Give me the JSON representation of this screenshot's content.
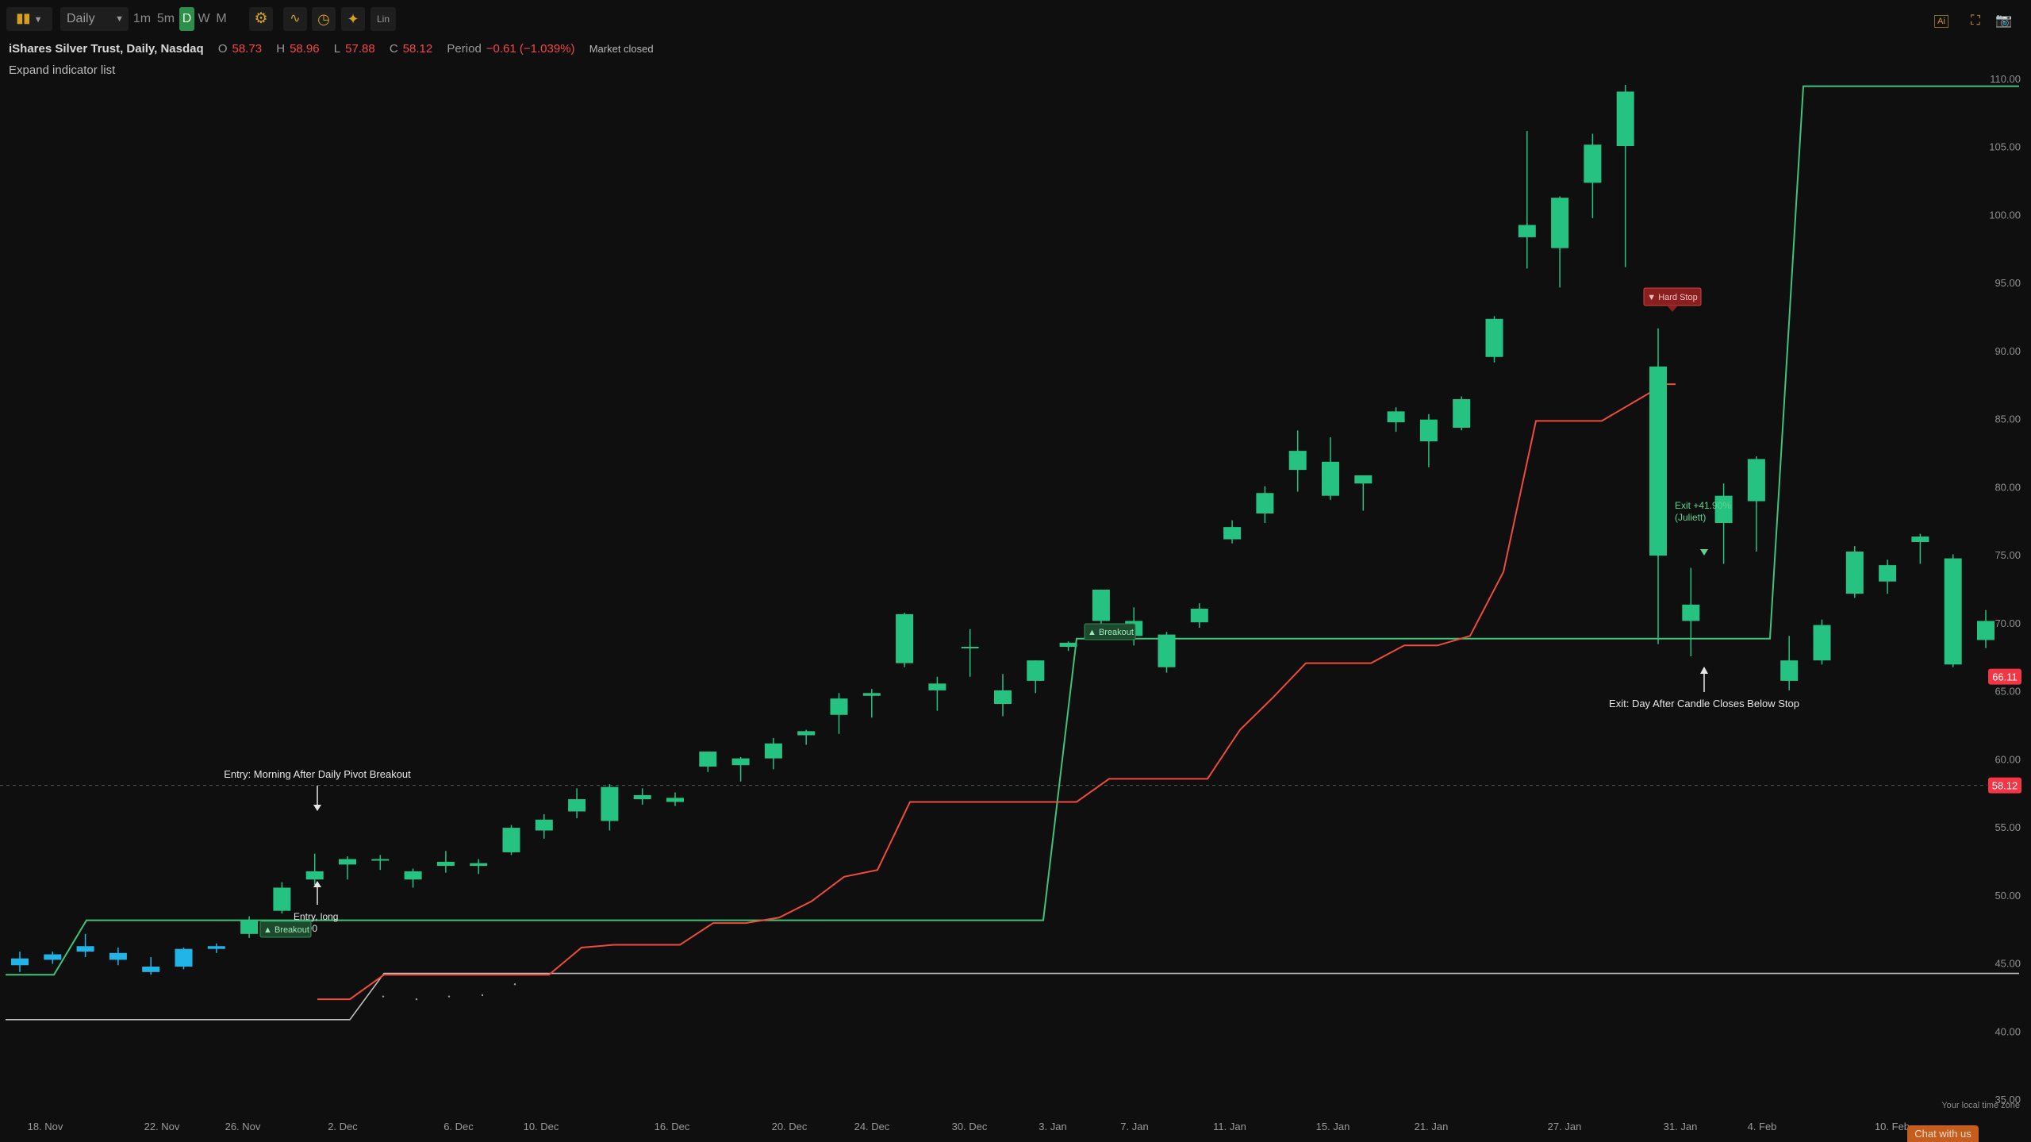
{
  "toolbar": {
    "timeframe": "Daily",
    "intervals": [
      "1m",
      "5m",
      "D",
      "W",
      "M"
    ],
    "active_interval": "D",
    "lin_label": "Lin"
  },
  "legend": {
    "symbol": "iShares Silver Trust, Daily, Nasdaq",
    "o_label": "O",
    "o": "58.73",
    "h_label": "H",
    "h": "58.96",
    "l_label": "L",
    "l": "57.88",
    "c_label": "C",
    "c": "58.12",
    "period_label": "Period",
    "period": "−0.61 (−1.039%)",
    "status": "Market closed"
  },
  "expand_label": "Expand indicator list",
  "timezone_note": "Your local time zone",
  "chat_label": "Chat with us",
  "colors": {
    "background": "#0f0f0f",
    "up": "#26c281",
    "early": "#22b4e6",
    "stop": "#f04b3a",
    "channel": "#3ec47a",
    "floor": "#bfbfbf",
    "price_badge": "#f23645"
  },
  "icons": [
    "candles-icon",
    "settings-icon",
    "indicators-icon",
    "clock-icon",
    "crosshair-icon",
    "ai-icon",
    "fullscreen-icon",
    "camera-icon"
  ],
  "chart_data": {
    "type": "candlestick",
    "y_axis": {
      "min": 35,
      "max": 110,
      "ticks": [
        110,
        105,
        100,
        95,
        90,
        85,
        80,
        75,
        70,
        65,
        60,
        55,
        50,
        45,
        40,
        35
      ]
    },
    "x_ticks": [
      "18. Nov",
      "22. Nov",
      "26. Nov",
      "2. Dec",
      "6. Dec",
      "10. Dec",
      "16. Dec",
      "20. Dec",
      "24. Dec",
      "30. Dec",
      "3. Jan",
      "7. Jan",
      "11. Jan",
      "15. Jan",
      "21. Jan",
      "27. Jan",
      "31. Jan",
      "4. Feb",
      "10. Feb"
    ],
    "candles": [
      {
        "i": 0,
        "o": 44.9,
        "h": 45.9,
        "l": 44.4,
        "c": 45.4,
        "early": true
      },
      {
        "i": 1,
        "o": 45.3,
        "h": 45.9,
        "l": 45.0,
        "c": 45.7,
        "early": true
      },
      {
        "i": 2,
        "o": 45.9,
        "h": 47.2,
        "l": 45.5,
        "c": 46.3,
        "early": true
      },
      {
        "i": 3,
        "o": 45.3,
        "h": 46.2,
        "l": 44.9,
        "c": 45.8,
        "early": true
      },
      {
        "i": 4,
        "o": 44.4,
        "h": 45.5,
        "l": 44.2,
        "c": 44.8,
        "early": true
      },
      {
        "i": 5,
        "o": 44.8,
        "h": 46.2,
        "l": 44.6,
        "c": 46.1,
        "early": true
      },
      {
        "i": 6,
        "o": 46.1,
        "h": 46.5,
        "l": 45.8,
        "c": 46.3,
        "early": true
      },
      {
        "i": 7,
        "o": 47.2,
        "h": 48.5,
        "l": 46.9,
        "c": 48.2
      },
      {
        "i": 8,
        "o": 48.9,
        "h": 51.0,
        "l": 48.7,
        "c": 50.6
      },
      {
        "i": 9,
        "o": 51.2,
        "h": 53.1,
        "l": 50.8,
        "c": 51.8
      },
      {
        "i": 10,
        "o": 52.3,
        "h": 52.9,
        "l": 51.2,
        "c": 52.7
      },
      {
        "i": 11,
        "o": 52.6,
        "h": 53.0,
        "l": 51.9,
        "c": 52.7
      },
      {
        "i": 12,
        "o": 51.2,
        "h": 52.0,
        "l": 50.6,
        "c": 51.8
      },
      {
        "i": 13,
        "o": 52.2,
        "h": 53.3,
        "l": 51.7,
        "c": 52.5
      },
      {
        "i": 14,
        "o": 52.2,
        "h": 52.7,
        "l": 51.6,
        "c": 52.4
      },
      {
        "i": 15,
        "o": 53.2,
        "h": 55.2,
        "l": 53.0,
        "c": 55.0
      },
      {
        "i": 16,
        "o": 54.8,
        "h": 56.0,
        "l": 54.2,
        "c": 55.6
      },
      {
        "i": 17,
        "o": 56.2,
        "h": 57.9,
        "l": 55.7,
        "c": 57.1
      },
      {
        "i": 18,
        "o": 55.5,
        "h": 58.2,
        "l": 54.8,
        "c": 58.0
      },
      {
        "i": 19,
        "o": 57.1,
        "h": 57.9,
        "l": 56.7,
        "c": 57.4
      },
      {
        "i": 20,
        "o": 56.9,
        "h": 57.6,
        "l": 56.6,
        "c": 57.2
      },
      {
        "i": 21,
        "o": 59.5,
        "h": 60.4,
        "l": 59.1,
        "c": 60.6
      },
      {
        "i": 22,
        "o": 59.6,
        "h": 60.2,
        "l": 58.4,
        "c": 60.1
      },
      {
        "i": 23,
        "o": 60.1,
        "h": 61.6,
        "l": 59.3,
        "c": 61.2
      },
      {
        "i": 24,
        "o": 61.8,
        "h": 62.2,
        "l": 61.1,
        "c": 62.1
      },
      {
        "i": 25,
        "o": 63.3,
        "h": 64.9,
        "l": 61.9,
        "c": 64.5
      },
      {
        "i": 26,
        "o": 64.7,
        "h": 65.2,
        "l": 63.1,
        "c": 64.9
      },
      {
        "i": 27,
        "o": 67.1,
        "h": 70.8,
        "l": 66.8,
        "c": 70.7
      },
      {
        "i": 28,
        "o": 65.1,
        "h": 66.1,
        "l": 63.6,
        "c": 65.6
      },
      {
        "i": 29,
        "o": 68.2,
        "h": 69.6,
        "l": 66.1,
        "c": 68.3
      },
      {
        "i": 30,
        "o": 64.1,
        "h": 66.3,
        "l": 63.2,
        "c": 65.1
      },
      {
        "i": 31,
        "o": 65.8,
        "h": 67.3,
        "l": 64.9,
        "c": 67.3
      },
      {
        "i": 32,
        "o": 68.3,
        "h": 68.7,
        "l": 68.0,
        "c": 68.6
      },
      {
        "i": 33,
        "o": 70.2,
        "h": 71.8,
        "l": 68.9,
        "c": 72.5
      },
      {
        "i": 34,
        "o": 69.1,
        "h": 71.2,
        "l": 68.4,
        "c": 70.2
      },
      {
        "i": 35,
        "o": 66.8,
        "h": 69.4,
        "l": 66.4,
        "c": 69.2
      },
      {
        "i": 36,
        "o": 70.1,
        "h": 71.5,
        "l": 69.7,
        "c": 71.1
      },
      {
        "i": 37,
        "o": 76.2,
        "h": 77.6,
        "l": 75.9,
        "c": 77.1
      },
      {
        "i": 38,
        "o": 78.1,
        "h": 80.1,
        "l": 77.4,
        "c": 79.6
      },
      {
        "i": 39,
        "o": 81.3,
        "h": 84.2,
        "l": 79.7,
        "c": 82.7
      },
      {
        "i": 40,
        "o": 79.4,
        "h": 83.7,
        "l": 79.1,
        "c": 81.9
      },
      {
        "i": 41,
        "o": 80.3,
        "h": 80.9,
        "l": 78.3,
        "c": 80.9
      },
      {
        "i": 42,
        "o": 84.8,
        "h": 85.9,
        "l": 84.1,
        "c": 85.6
      },
      {
        "i": 43,
        "o": 83.4,
        "h": 85.4,
        "l": 81.5,
        "c": 85.0
      },
      {
        "i": 44,
        "o": 84.4,
        "h": 86.7,
        "l": 84.2,
        "c": 86.5
      },
      {
        "i": 45,
        "o": 89.6,
        "h": 92.6,
        "l": 89.2,
        "c": 92.4
      },
      {
        "i": 46,
        "o": 98.4,
        "h": 106.2,
        "l": 96.1,
        "c": 99.3
      },
      {
        "i": 47,
        "o": 97.6,
        "h": 101.4,
        "l": 94.7,
        "c": 101.3
      },
      {
        "i": 48,
        "o": 102.4,
        "h": 106.0,
        "l": 99.8,
        "c": 105.2
      },
      {
        "i": 49,
        "o": 105.1,
        "h": 109.6,
        "l": 96.2,
        "c": 109.1
      },
      {
        "i": 50,
        "o": 75.0,
        "h": 91.7,
        "l": 68.5,
        "c": 88.9
      },
      {
        "i": 51,
        "o": 70.2,
        "h": 74.1,
        "l": 67.6,
        "c": 71.4
      },
      {
        "i": 52,
        "o": 77.4,
        "h": 80.3,
        "l": 74.4,
        "c": 79.4
      },
      {
        "i": 53,
        "o": 79.0,
        "h": 82.3,
        "l": 75.3,
        "c": 82.1
      },
      {
        "i": 54,
        "o": 65.8,
        "h": 69.1,
        "l": 65.1,
        "c": 67.3
      },
      {
        "i": 55,
        "o": 67.3,
        "h": 70.3,
        "l": 67.0,
        "c": 69.9
      },
      {
        "i": 56,
        "o": 72.2,
        "h": 75.7,
        "l": 71.9,
        "c": 75.3
      },
      {
        "i": 57,
        "o": 73.1,
        "h": 74.7,
        "l": 72.2,
        "c": 74.3
      },
      {
        "i": 58,
        "o": 76.0,
        "h": 76.6,
        "l": 74.4,
        "c": 76.4
      },
      {
        "i": 59,
        "o": 67.0,
        "h": 75.1,
        "l": 66.8,
        "c": 74.8
      },
      {
        "i": 60,
        "o": 68.8,
        "h": 71.0,
        "l": 68.2,
        "c": 70.2
      }
    ],
    "price_labels": [
      {
        "value": 66.11,
        "text": "66.11"
      },
      {
        "value": 58.12,
        "text": "58.12"
      }
    ],
    "annotations": {
      "entry_title": "Entry: Morning After Daily Pivot Breakout",
      "entry_long": "Entry, long",
      "entry_price": "52.00",
      "breakout_1": "▲ Breakout",
      "breakout_2": "▲ Breakout",
      "hard_stop": "▼ Hard Stop",
      "exit_line1": "Exit +41.90%",
      "exit_line2": "(Juliett)",
      "exit_title": "Exit: Day After Candle Closes Below Stop"
    }
  }
}
